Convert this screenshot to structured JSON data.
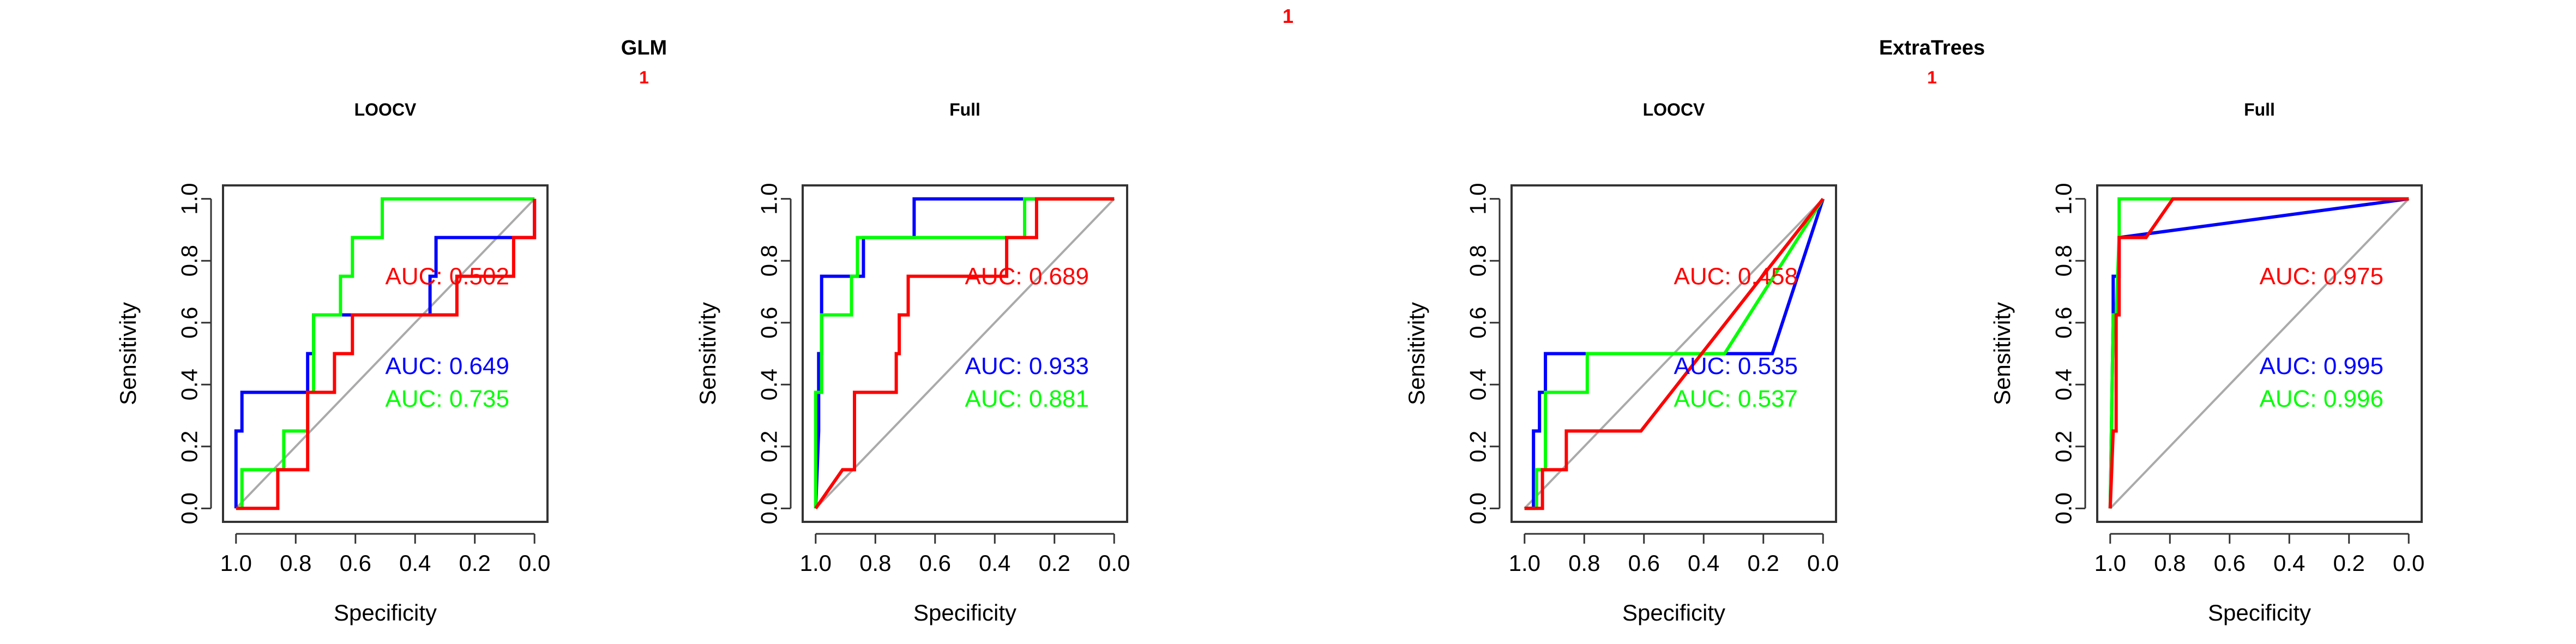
{
  "figure": {
    "top_label": "1",
    "groups": [
      {
        "title": "GLM",
        "sublabel": "1"
      },
      {
        "title": "ExtraTrees",
        "sublabel": "1"
      }
    ]
  },
  "colors": {
    "blue": "#0000ff",
    "green": "#00ff00",
    "red": "#ff0000",
    "diagonal": "#aaaaaa",
    "text_red": "#ff0000"
  },
  "chart_data": [
    {
      "type": "line",
      "title": "LOOCV",
      "xlabel": "Specificity",
      "ylabel": "Sensitivity",
      "xlim": [
        1.0,
        0.0
      ],
      "ylim": [
        0.0,
        1.0
      ],
      "x_ticks": [
        "1.0",
        "0.8",
        "0.6",
        "0.4",
        "0.2",
        "0.0"
      ],
      "y_ticks": [
        "0.0",
        "0.2",
        "0.4",
        "0.6",
        "0.8",
        "1.0"
      ],
      "series": [
        {
          "color": "blue",
          "auc_label": "AUC: 0.649",
          "x": [
            1.0,
            1.0,
            0.98,
            0.98,
            0.76,
            0.76,
            0.74,
            0.74,
            0.35,
            0.35,
            0.33,
            0.33,
            0.0,
            0.0
          ],
          "y": [
            0.0,
            0.25,
            0.25,
            0.375,
            0.375,
            0.5,
            0.5,
            0.625,
            0.625,
            0.75,
            0.75,
            0.875,
            0.875,
            1.0
          ]
        },
        {
          "color": "green",
          "auc_label": "AUC: 0.735",
          "x": [
            1.0,
            0.98,
            0.98,
            0.84,
            0.84,
            0.76,
            0.76,
            0.74,
            0.74,
            0.65,
            0.65,
            0.61,
            0.61,
            0.56,
            0.56,
            0.51,
            0.51,
            0.0
          ],
          "y": [
            0.0,
            0.0,
            0.125,
            0.125,
            0.25,
            0.25,
            0.375,
            0.375,
            0.625,
            0.625,
            0.75,
            0.75,
            0.875,
            0.875,
            0.875,
            0.875,
            1.0,
            1.0
          ]
        },
        {
          "color": "red",
          "auc_label": "AUC: 0.502",
          "x": [
            1.0,
            0.86,
            0.86,
            0.76,
            0.76,
            0.67,
            0.67,
            0.61,
            0.61,
            0.26,
            0.26,
            0.07,
            0.07,
            0.02,
            0.02,
            0.0,
            0.0
          ],
          "y": [
            0.0,
            0.0,
            0.125,
            0.125,
            0.375,
            0.375,
            0.5,
            0.5,
            0.625,
            0.625,
            0.75,
            0.75,
            0.875,
            0.875,
            0.875,
            0.875,
            1.0
          ]
        }
      ]
    },
    {
      "type": "line",
      "title": "Full",
      "xlabel": "Specificity",
      "ylabel": "Sensitivity",
      "xlim": [
        1.0,
        0.0
      ],
      "ylim": [
        0.0,
        1.0
      ],
      "x_ticks": [
        "1.0",
        "0.8",
        "0.6",
        "0.4",
        "0.2",
        "0.0"
      ],
      "y_ticks": [
        "0.0",
        "0.2",
        "0.4",
        "0.6",
        "0.8",
        "1.0"
      ],
      "series": [
        {
          "color": "blue",
          "auc_label": "AUC: 0.933",
          "x": [
            1.0,
            0.99,
            0.99,
            0.98,
            0.98,
            0.98,
            0.98,
            0.84,
            0.84,
            0.67,
            0.67,
            0.0
          ],
          "y": [
            0.0,
            0.25,
            0.5,
            0.5,
            0.625,
            0.625,
            0.75,
            0.75,
            0.875,
            0.875,
            1.0,
            1.0
          ]
        },
        {
          "color": "green",
          "auc_label": "AUC: 0.881",
          "x": [
            1.0,
            1.0,
            0.98,
            0.98,
            0.88,
            0.88,
            0.86,
            0.86,
            0.3,
            0.3,
            0.0
          ],
          "y": [
            0.0,
            0.375,
            0.375,
            0.625,
            0.625,
            0.75,
            0.75,
            0.875,
            0.875,
            1.0,
            1.0
          ]
        },
        {
          "color": "red",
          "auc_label": "AUC: 0.689",
          "x": [
            1.0,
            0.91,
            0.87,
            0.87,
            0.73,
            0.73,
            0.72,
            0.72,
            0.69,
            0.69,
            0.36,
            0.36,
            0.26,
            0.26,
            0.0
          ],
          "y": [
            0.0,
            0.125,
            0.125,
            0.375,
            0.375,
            0.5,
            0.5,
            0.625,
            0.625,
            0.75,
            0.75,
            0.875,
            0.875,
            1.0,
            1.0
          ]
        }
      ]
    },
    {
      "type": "line",
      "title": "LOOCV",
      "xlabel": "Specificity",
      "ylabel": "Sensitivity",
      "xlim": [
        1.0,
        0.0
      ],
      "ylim": [
        0.0,
        1.0
      ],
      "x_ticks": [
        "1.0",
        "0.8",
        "0.6",
        "0.4",
        "0.2",
        "0.0"
      ],
      "y_ticks": [
        "0.0",
        "0.2",
        "0.4",
        "0.6",
        "0.8",
        "1.0"
      ],
      "series": [
        {
          "color": "blue",
          "auc_label": "AUC: 0.535",
          "x": [
            1.0,
            0.97,
            0.97,
            0.95,
            0.95,
            0.93,
            0.93,
            0.17,
            0.0
          ],
          "y": [
            0.0,
            0.0,
            0.25,
            0.25,
            0.375,
            0.375,
            0.5,
            0.5,
            1.0
          ]
        },
        {
          "color": "green",
          "auc_label": "AUC: 0.537",
          "x": [
            1.0,
            0.96,
            0.96,
            0.93,
            0.93,
            0.79,
            0.79,
            0.33,
            0.0
          ],
          "y": [
            0.0,
            0.0,
            0.125,
            0.125,
            0.375,
            0.375,
            0.5,
            0.5,
            1.0
          ]
        },
        {
          "color": "red",
          "auc_label": "AUC: 0.458",
          "x": [
            1.0,
            0.94,
            0.94,
            0.86,
            0.86,
            0.79,
            0.79,
            0.61,
            0.0
          ],
          "y": [
            0.0,
            0.0,
            0.125,
            0.125,
            0.25,
            0.25,
            0.25,
            0.25,
            1.0
          ]
        }
      ]
    },
    {
      "type": "line",
      "title": "Full",
      "xlabel": "Specificity",
      "ylabel": "Sensitivity",
      "xlim": [
        1.0,
        0.0
      ],
      "ylim": [
        0.0,
        1.0
      ],
      "x_ticks": [
        "1.0",
        "0.8",
        "0.6",
        "0.4",
        "0.2",
        "0.0"
      ],
      "y_ticks": [
        "0.0",
        "0.2",
        "0.4",
        "0.6",
        "0.8",
        "1.0"
      ],
      "series": [
        {
          "color": "blue",
          "auc_label": "AUC: 0.995",
          "x": [
            1.0,
            0.99,
            0.99,
            0.97,
            0.97,
            0.0
          ],
          "y": [
            0.0,
            0.625,
            0.75,
            0.75,
            0.875,
            1.0
          ]
        },
        {
          "color": "green",
          "auc_label": "AUC: 0.996",
          "x": [
            1.0,
            0.99,
            0.98,
            0.97,
            0.97,
            0.0
          ],
          "y": [
            0.0,
            0.625,
            0.625,
            0.875,
            1.0,
            1.0
          ]
        },
        {
          "color": "red",
          "auc_label": "AUC: 0.975",
          "x": [
            1.0,
            0.99,
            0.98,
            0.98,
            0.97,
            0.97,
            0.88,
            0.79,
            0.0
          ],
          "y": [
            0.0,
            0.25,
            0.25,
            0.625,
            0.625,
            0.875,
            0.875,
            1.0,
            1.0
          ]
        }
      ]
    }
  ]
}
